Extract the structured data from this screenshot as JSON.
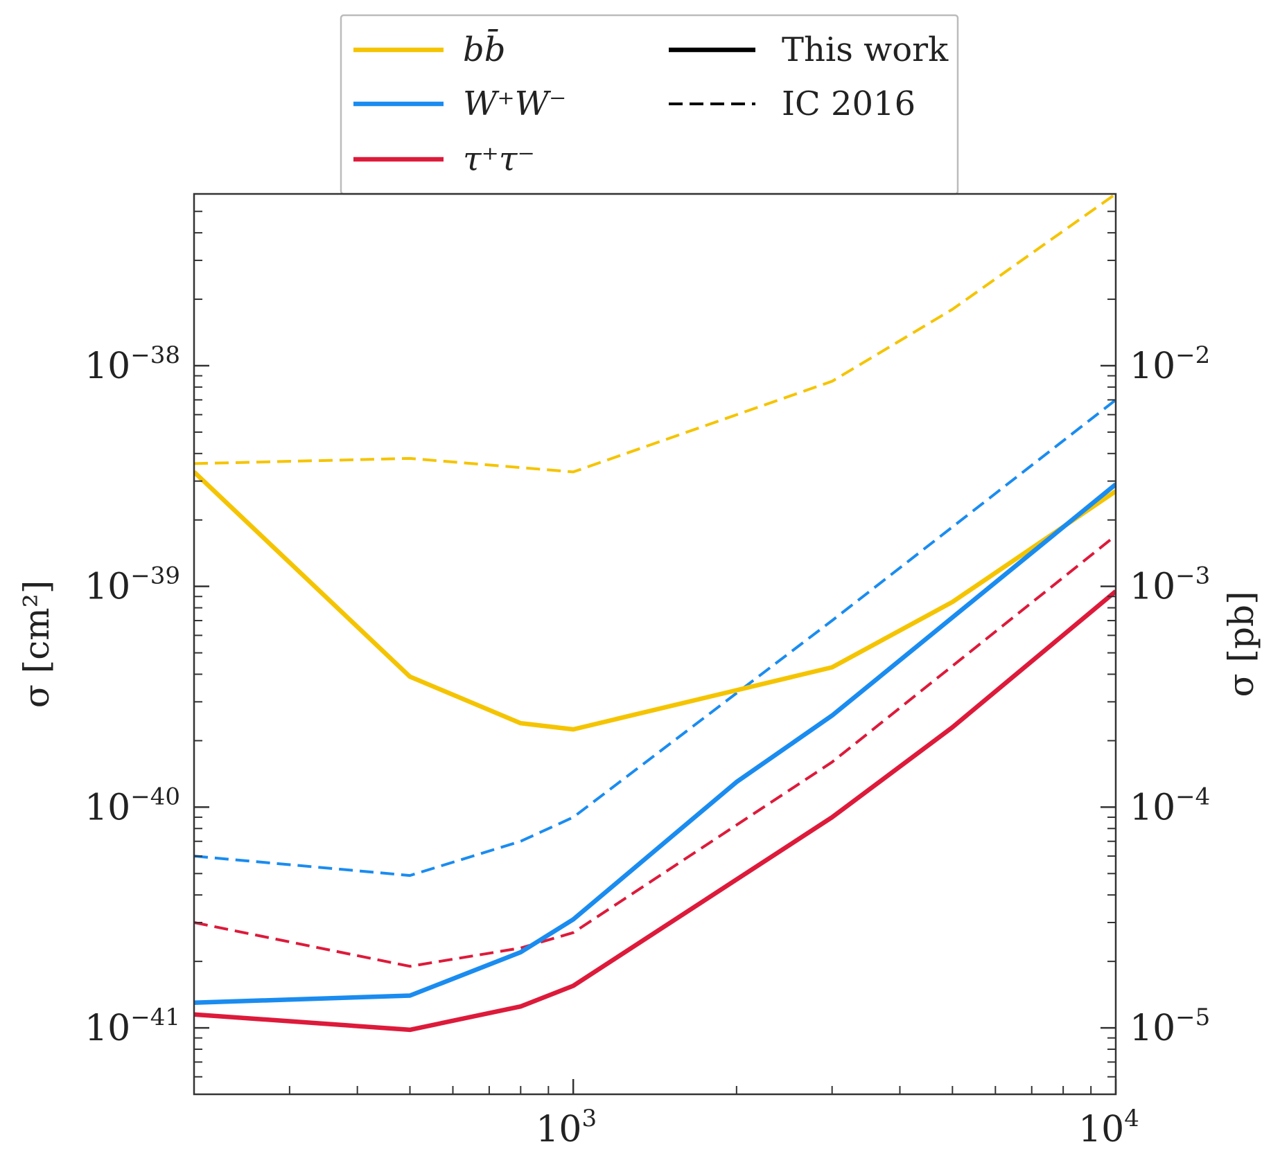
{
  "chart_data": {
    "type": "line",
    "title": "",
    "xlabel": "",
    "ylabel": "σ [cm²]",
    "ylabel_right": "σ [pb]",
    "xscale": "log",
    "yscale": "log",
    "xlim": [
      200,
      10000
    ],
    "ylim": [
      5e-42,
      6e-38
    ],
    "x_ticks": [
      {
        "value": 1000,
        "base": "10",
        "exp": "3"
      },
      {
        "value": 10000,
        "base": "10",
        "exp": "4"
      }
    ],
    "y_ticks_left": [
      {
        "value": 1e-38,
        "base": "10",
        "exp": "−38"
      },
      {
        "value": 1e-39,
        "base": "10",
        "exp": "−39"
      },
      {
        "value": 1e-40,
        "base": "10",
        "exp": "−40"
      },
      {
        "value": 1e-41,
        "base": "10",
        "exp": "−41"
      }
    ],
    "y_ticks_right": [
      {
        "value": 1e-38,
        "base": "10",
        "exp": "−2"
      },
      {
        "value": 1e-39,
        "base": "10",
        "exp": "−3"
      },
      {
        "value": 1e-40,
        "base": "10",
        "exp": "−4"
      },
      {
        "value": 1e-41,
        "base": "10",
        "exp": "−5"
      }
    ],
    "series": [
      {
        "name": "bb̄ (This work)",
        "channel": "bb",
        "color": "#f5c400",
        "style": "solid",
        "x": [
          200,
          500,
          800,
          1000,
          3000,
          5000,
          10000
        ],
        "y": [
          3.3e-39,
          3.9e-40,
          2.4e-40,
          2.25e-40,
          4.3e-40,
          8.5e-40,
          2.7e-39
        ]
      },
      {
        "name": "W⁺W⁻ (This work)",
        "channel": "WW",
        "color": "#1a8cf0",
        "style": "solid",
        "x": [
          200,
          500,
          800,
          1000,
          2000,
          3000,
          10000
        ],
        "y": [
          1.3e-41,
          1.4e-41,
          2.2e-41,
          3.1e-41,
          1.3e-40,
          2.6e-40,
          2.9e-39
        ]
      },
      {
        "name": "τ⁺τ⁻ (This work)",
        "channel": "tautau",
        "color": "#dd1a3a",
        "style": "solid",
        "x": [
          200,
          500,
          800,
          1000,
          3000,
          5000,
          10000
        ],
        "y": [
          1.15e-41,
          9.8e-42,
          1.25e-41,
          1.55e-41,
          9e-41,
          2.3e-40,
          9.5e-40
        ]
      },
      {
        "name": "bb̄ (IC 2016)",
        "channel": "bb",
        "color": "#f5c400",
        "style": "dashed",
        "x": [
          200,
          500,
          1000,
          3000,
          5000,
          10000
        ],
        "y": [
          3.6e-39,
          3.8e-39,
          3.3e-39,
          8.5e-39,
          1.8e-38,
          6e-38
        ]
      },
      {
        "name": "W⁺W⁻ (IC 2016)",
        "channel": "WW",
        "color": "#1a8cf0",
        "style": "dashed",
        "x": [
          200,
          500,
          800,
          1000,
          3000,
          10000
        ],
        "y": [
          6e-41,
          4.9e-41,
          7e-41,
          9e-41,
          7e-40,
          7e-39
        ]
      },
      {
        "name": "τ⁺τ⁻ (IC 2016)",
        "channel": "tautau",
        "color": "#dd1a3a",
        "style": "dashed",
        "x": [
          200,
          500,
          800,
          1000,
          3000,
          10000
        ],
        "y": [
          3e-41,
          1.9e-41,
          2.3e-41,
          2.7e-41,
          1.6e-40,
          1.7e-39
        ]
      }
    ],
    "legend": {
      "placement": "top-center-outside",
      "entries": [
        {
          "label": "bb̄",
          "label_html": "<tspan font-style='italic'>b</tspan><tspan font-style='italic'>b̄</tspan>",
          "color": "#f5c400",
          "style": "solid"
        },
        {
          "label": "W⁺W⁻",
          "color": "#1a8cf0",
          "style": "solid"
        },
        {
          "label": "τ⁺τ⁻",
          "color": "#dd1a3a",
          "style": "solid"
        },
        {
          "label": "This work",
          "color": "#000000",
          "style": "solid"
        },
        {
          "label": "IC 2016",
          "color": "#000000",
          "style": "dashed"
        }
      ]
    }
  }
}
